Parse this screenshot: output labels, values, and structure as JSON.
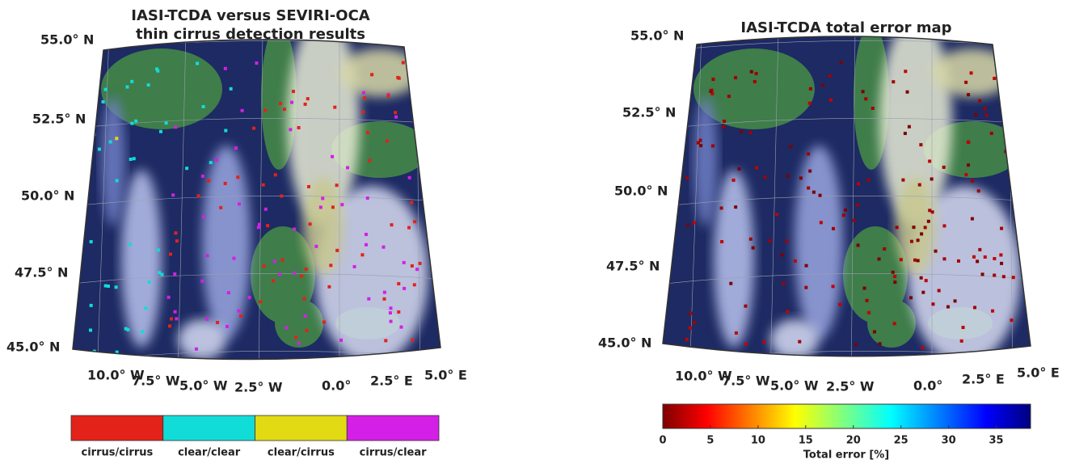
{
  "left": {
    "title": [
      "IASI-TCDA versus SEVIRI-OCA",
      "thin cirrus detection results"
    ],
    "lat_labels": [
      "55.0° N",
      "52.5° N",
      "50.0° N",
      "47.5° N",
      "45.0° N"
    ],
    "lon_labels": [
      "10.0° W",
      "7.5° W",
      "5.0° W",
      "2.5° W",
      "0.0°",
      "2.5° E",
      "5.0° E"
    ],
    "legend": [
      {
        "label": "cirrus/cirrus",
        "color": "#e32219"
      },
      {
        "label": "clear/clear",
        "color": "#12dcd8"
      },
      {
        "label": "clear/cirrus",
        "color": "#e2da12"
      },
      {
        "label": "cirrus/clear",
        "color": "#d41fe6"
      }
    ]
  },
  "right": {
    "title": "IASI-TCDA total error map",
    "lat_labels": [
      "55.0° N",
      "52.5° N",
      "50.0° N",
      "47.5° N",
      "45.0° N"
    ],
    "lon_labels": [
      "10.0° W",
      "7.5° W",
      "5.0° W",
      "2.5° W",
      "0.0°",
      "2.5° E",
      "5.0° E"
    ],
    "colorbar": {
      "range": [
        0,
        38.6
      ],
      "ticks": [
        0,
        5,
        10,
        15,
        20,
        25,
        30,
        35
      ],
      "label": "Total error [%]"
    }
  }
}
